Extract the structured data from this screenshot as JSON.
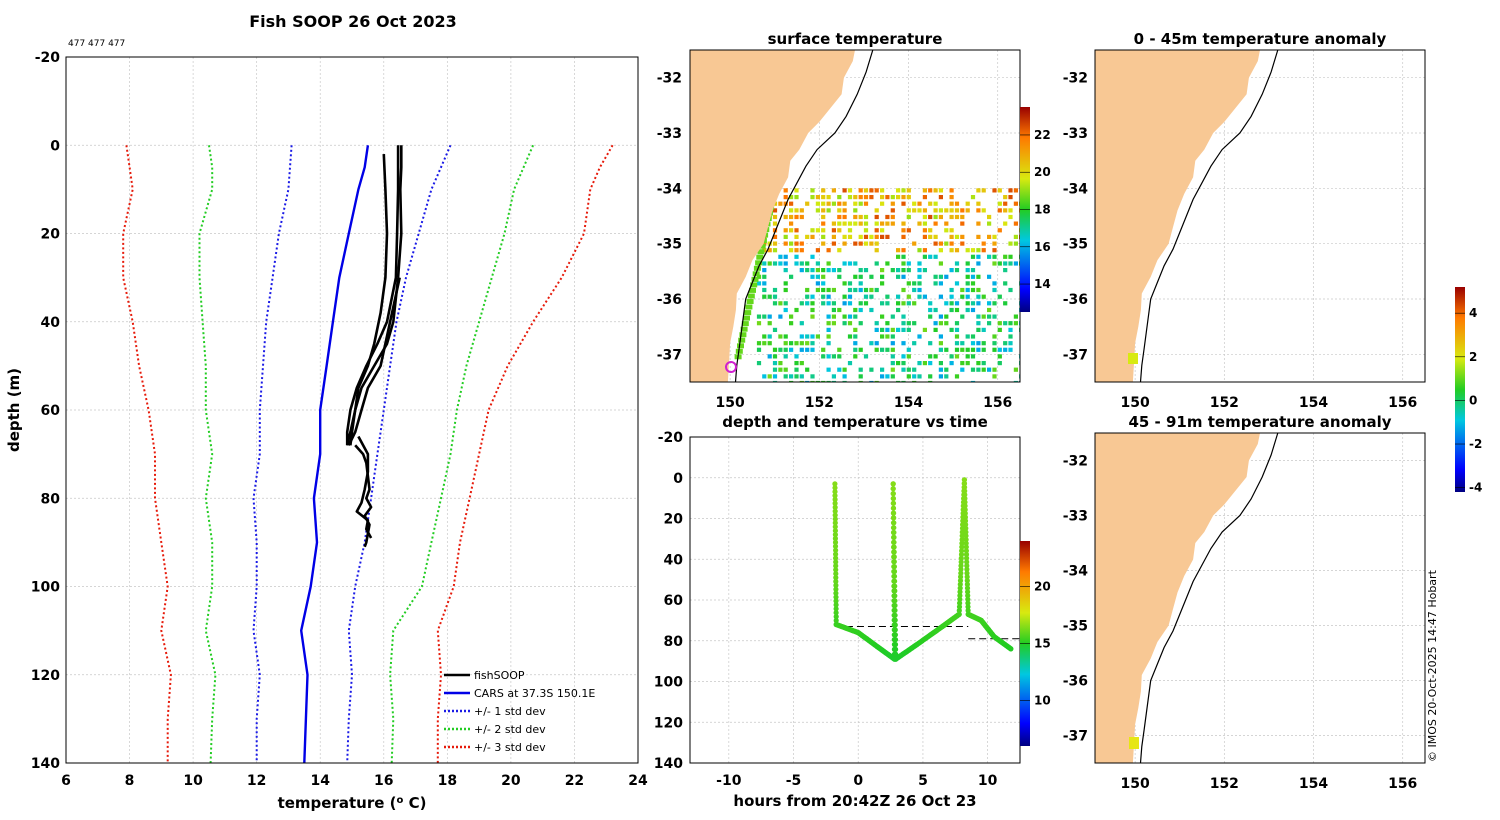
{
  "colors": {
    "land": "#f8c894",
    "grid": "#c8c8c8",
    "fishsoop": "#000000",
    "cars": "#0000e6",
    "std1": "#1a1ae6",
    "std2": "#22cc22",
    "std3": "#e61a0a"
  },
  "chart_data": [
    {
      "id": "profile",
      "type": "line",
      "title": "Fish SOOP 26 Oct 2023",
      "subtitle": "477 477 477",
      "xlabel": "temperature (",
      "xlabel_sup": "o",
      "xlabel_tail": " C)",
      "ylabel": "depth (m)",
      "xlim": [
        6,
        24
      ],
      "ylim": [
        -20,
        140
      ],
      "y_reversed": true,
      "xticks": [
        6,
        8,
        10,
        12,
        14,
        16,
        18,
        20,
        22,
        24
      ],
      "yticks": [
        -20,
        0,
        20,
        40,
        60,
        80,
        100,
        120,
        140
      ],
      "grid": true,
      "legend_position": "bottom-right",
      "legend": [
        {
          "label": "fishSOOP",
          "style": "solid",
          "color_key": "fishsoop"
        },
        {
          "label": "CARS at 37.3S 150.1E",
          "style": "solid",
          "color_key": "cars"
        },
        {
          "label": "+/- 1 std dev",
          "style": "dotted",
          "color_key": "std1"
        },
        {
          "label": "+/- 2 std dev",
          "style": "dotted",
          "color_key": "std2"
        },
        {
          "label": "+/- 3 std dev",
          "style": "dotted",
          "color_key": "std3"
        }
      ],
      "depths": [
        0,
        5,
        10,
        20,
        30,
        40,
        50,
        60,
        70,
        80,
        90,
        100,
        110,
        120,
        130,
        140
      ],
      "series": [
        {
          "name": "CARS at 37.3S 150.1E",
          "color_key": "cars",
          "style": "solid",
          "temps": [
            15.5,
            15.4,
            15.2,
            14.9,
            14.6,
            14.4,
            14.2,
            14.0,
            14.0,
            13.8,
            13.9,
            13.7,
            13.4,
            13.6,
            13.55,
            13.5
          ]
        },
        {
          "name": "-1 std",
          "color_key": "std1",
          "style": "dotted",
          "temps": [
            13.1,
            13.05,
            13.0,
            12.7,
            12.5,
            12.3,
            12.2,
            12.1,
            12.1,
            11.9,
            12.0,
            12.0,
            11.9,
            12.1,
            12.0,
            12.0
          ]
        },
        {
          "name": "+1 std",
          "color_key": "std1",
          "style": "dotted",
          "temps": [
            18.1,
            17.8,
            17.5,
            17.1,
            16.7,
            16.4,
            16.2,
            16.0,
            15.8,
            15.6,
            15.4,
            15.1,
            14.9,
            15.0,
            14.9,
            14.85
          ]
        },
        {
          "name": "-2 std",
          "color_key": "std2",
          "style": "dotted",
          "temps": [
            10.5,
            10.6,
            10.6,
            10.2,
            10.2,
            10.3,
            10.4,
            10.4,
            10.6,
            10.4,
            10.6,
            10.6,
            10.4,
            10.7,
            10.6,
            10.55
          ]
        },
        {
          "name": "+2 std",
          "color_key": "std2",
          "style": "dotted",
          "temps": [
            20.7,
            20.4,
            20.1,
            19.8,
            19.4,
            19.0,
            18.6,
            18.3,
            18.1,
            17.8,
            17.5,
            17.2,
            16.3,
            16.2,
            16.3,
            16.25
          ]
        },
        {
          "name": "-3 std",
          "color_key": "std3",
          "style": "dotted",
          "temps": [
            7.9,
            8.0,
            8.1,
            7.8,
            7.8,
            8.1,
            8.3,
            8.6,
            8.8,
            8.8,
            9.0,
            9.2,
            9.0,
            9.3,
            9.2,
            9.2
          ]
        },
        {
          "name": "+3 std",
          "color_key": "std3",
          "style": "dotted",
          "temps": [
            23.2,
            22.8,
            22.5,
            22.3,
            21.6,
            20.7,
            19.9,
            19.3,
            19.0,
            18.7,
            18.4,
            18.2,
            17.7,
            17.8,
            17.7,
            17.7
          ]
        }
      ],
      "fishsoop_casts": [
        {
          "depths": [
            0,
            5,
            10,
            20,
            30,
            40,
            45,
            50,
            55,
            60,
            65,
            68
          ],
          "temps": [
            16.55,
            16.55,
            16.52,
            16.55,
            16.45,
            16.3,
            16.1,
            15.7,
            15.3,
            15.1,
            14.95,
            14.85
          ]
        },
        {
          "depths": [
            0,
            10,
            20,
            30,
            40,
            45,
            50,
            55,
            60,
            65,
            68
          ],
          "temps": [
            16.45,
            16.45,
            16.42,
            16.38,
            16.1,
            15.8,
            15.45,
            15.15,
            14.95,
            14.85,
            14.85
          ]
        },
        {
          "depths": [
            2,
            10,
            20,
            30,
            38,
            45,
            50,
            55,
            60,
            65,
            68
          ],
          "temps": [
            16.0,
            16.05,
            16.1,
            16.05,
            15.9,
            15.7,
            15.5,
            15.2,
            15.1,
            15.0,
            14.95
          ]
        },
        {
          "depths": [
            30,
            40,
            50,
            55,
            60,
            65,
            68
          ],
          "temps": [
            16.5,
            16.2,
            15.9,
            15.5,
            15.3,
            15.1,
            14.9
          ]
        },
        {
          "depths": [
            68,
            70,
            72,
            75,
            78,
            80,
            82,
            84,
            86,
            88,
            90,
            91
          ],
          "temps": [
            15.1,
            15.35,
            15.45,
            15.5,
            15.55,
            15.45,
            15.6,
            15.4,
            15.55,
            15.5,
            15.45,
            15.4
          ]
        },
        {
          "depths": [
            66,
            70,
            74,
            78,
            81,
            83,
            85,
            87,
            89
          ],
          "temps": [
            15.2,
            15.5,
            15.5,
            15.4,
            15.3,
            15.15,
            15.5,
            15.45,
            15.6
          ]
        }
      ]
    },
    {
      "id": "surface",
      "type": "heatmap",
      "title": "surface temperature",
      "xticks": [
        150,
        152,
        154,
        156
      ],
      "yticks": [
        -32,
        -33,
        -34,
        -35,
        -36,
        -37
      ],
      "xlim": [
        149.1,
        156.5
      ],
      "ylim": [
        -37.5,
        -31.5
      ],
      "colorbar": {
        "min": 12.5,
        "max": 23.5,
        "ticks": [
          14,
          16,
          18,
          20,
          22
        ]
      }
    },
    {
      "id": "timeseries",
      "type": "scatter",
      "title": "depth and temperature vs time",
      "xlabel": "hours from 20:42Z 26 Oct 23",
      "xlim": [
        -13,
        12.5
      ],
      "ylim": [
        -20,
        140
      ],
      "y_reversed": true,
      "xticks": [
        -10,
        -5,
        0,
        5,
        10
      ],
      "yticks": [
        -20,
        0,
        20,
        40,
        60,
        80,
        100,
        120,
        140
      ],
      "colorbar": {
        "min": 6,
        "max": 24,
        "ticks": [
          10,
          15,
          20
        ]
      },
      "track": [
        {
          "t": -1.8,
          "d": 3
        },
        {
          "t": -1.7,
          "d": 72
        },
        {
          "t": 0,
          "d": 76
        },
        {
          "t": 1.5,
          "d": 83
        },
        {
          "t": 2.8,
          "d": 89
        },
        {
          "t": 2.7,
          "d": 3
        },
        {
          "t": 2.9,
          "d": 89
        },
        {
          "t": 4.5,
          "d": 82
        },
        {
          "t": 6.5,
          "d": 73
        },
        {
          "t": 7.8,
          "d": 67
        },
        {
          "t": 8.2,
          "d": 1
        },
        {
          "t": 8.5,
          "d": 67
        },
        {
          "t": 9.5,
          "d": 70
        },
        {
          "t": 10.5,
          "d": 78
        },
        {
          "t": 11.8,
          "d": 84
        }
      ],
      "reference_depths": [
        {
          "t0": -1.8,
          "t1": 8.5,
          "d": 73
        },
        {
          "t0": 8.5,
          "t1": 12.5,
          "d": 79
        }
      ]
    },
    {
      "id": "anom1",
      "type": "heatmap",
      "title": "0 - 45m temperature anomaly",
      "xticks": [
        150,
        152,
        154,
        156
      ],
      "yticks": [
        -32,
        -33,
        -34,
        -35,
        -36,
        -37
      ],
      "xlim": [
        149.1,
        156.5
      ],
      "ylim": [
        -37.5,
        -31.5
      ],
      "colorbar": {
        "min": -4.2,
        "max": 5.2,
        "ticks": [
          -4,
          -2,
          0,
          2,
          4
        ]
      }
    },
    {
      "id": "anom2",
      "type": "heatmap",
      "title": "45 - 91m temperature anomaly",
      "xticks": [
        150,
        152,
        154,
        156
      ],
      "yticks": [
        -32,
        -33,
        -34,
        -35,
        -36,
        -37
      ],
      "xlim": [
        149.1,
        156.5
      ],
      "ylim": [
        -37.5,
        -31.5
      ]
    }
  ],
  "footer": {
    "credit": "© IMOS 20-Oct-2025 14:47 Hobart"
  }
}
